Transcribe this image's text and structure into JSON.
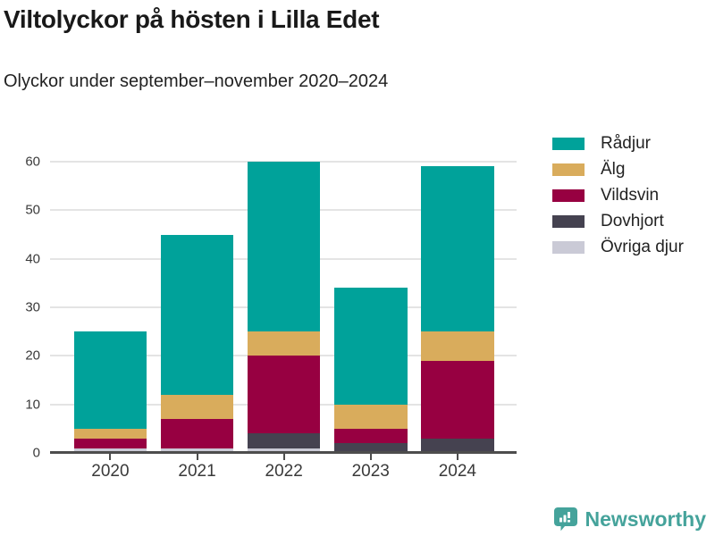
{
  "title": "Viltolyckor på hösten i Lilla Edet",
  "subtitle": "Olyckor under september–november 2020–2024",
  "brand": {
    "name": "Newsworthy",
    "color": "#45A39B"
  },
  "colors": {
    "axis": "#4D4D4D",
    "gridline": "#E4E4E4",
    "tick_text": "#3A3A3A",
    "title_text": "#191919"
  },
  "chart_data": {
    "type": "bar",
    "stacked": true,
    "title": "Viltolyckor på hösten i Lilla Edet",
    "subtitle": "Olyckor under september–november 2020–2024",
    "categories": [
      "2020",
      "2021",
      "2022",
      "2023",
      "2024"
    ],
    "series": [
      {
        "name": "Rådjur",
        "color": "#00A29A",
        "values": [
          20,
          33,
          35,
          24,
          34
        ]
      },
      {
        "name": "Älg",
        "color": "#D9AC5C",
        "values": [
          2,
          5,
          5,
          5,
          6
        ]
      },
      {
        "name": "Vildsvin",
        "color": "#970041",
        "values": [
          2,
          6,
          16,
          3,
          16
        ]
      },
      {
        "name": "Dovhjort",
        "color": "#454250",
        "values": [
          0,
          0,
          3,
          2,
          3
        ]
      },
      {
        "name": "Övriga djur",
        "color": "#CACAD6",
        "values": [
          1,
          1,
          1,
          0,
          0
        ]
      }
    ],
    "stack_order_bottom_to_top": [
      "Övriga djur",
      "Dovhjort",
      "Vildsvin",
      "Älg",
      "Rådjur"
    ],
    "xlabel": "",
    "ylabel": "",
    "yticks": [
      0,
      10,
      20,
      30,
      40,
      50,
      60
    ],
    "ylim": [
      0,
      60
    ],
    "grid": true,
    "legend_position": "right"
  }
}
